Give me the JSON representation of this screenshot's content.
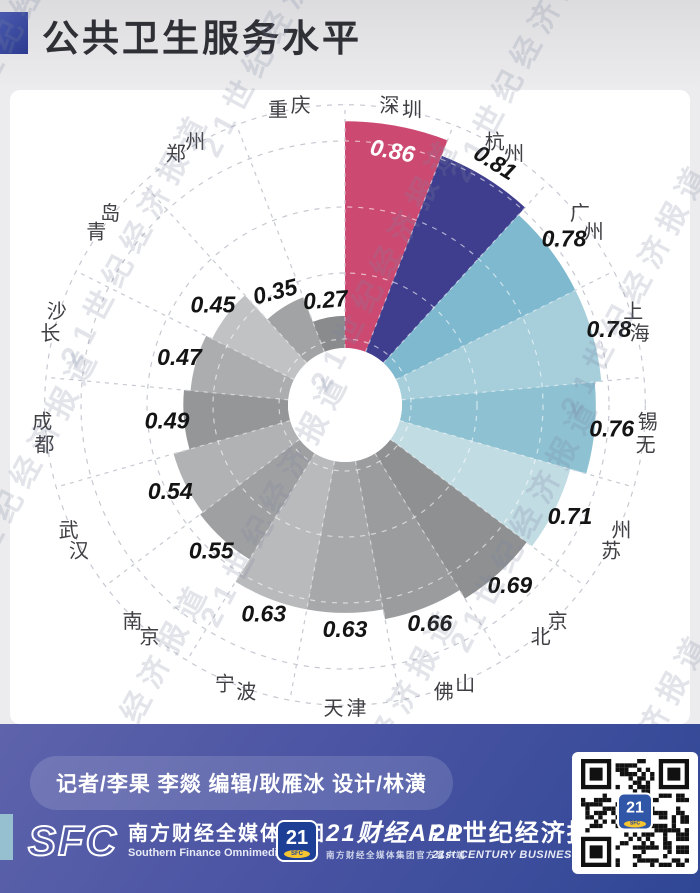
{
  "title": "公共卫生服务水平",
  "watermark": "21世纪经济报道",
  "colors": {
    "accent_blue": "#3c4a9e",
    "highlight_pink": "#cc4a71",
    "highlight_indigo": "#3f3d8e",
    "footer_top": "#5e63ab",
    "footer_bottom": "#2f4795"
  },
  "chart_data": {
    "type": "bar",
    "subtype": "polar-nightingale-rose",
    "title": "公共卫生服务水平",
    "categories": [
      "深圳",
      "杭州",
      "广州",
      "上海",
      "无锡",
      "苏州",
      "北京",
      "佛山",
      "天津",
      "宁波",
      "南京",
      "武汉",
      "成都",
      "长沙",
      "青岛",
      "郑州",
      "重庆"
    ],
    "values": [
      0.86,
      0.81,
      0.78,
      0.78,
      0.76,
      0.71,
      0.69,
      0.66,
      0.63,
      0.63,
      0.55,
      0.54,
      0.49,
      0.47,
      0.45,
      0.35,
      0.27
    ],
    "colors": [
      "#cc4a71",
      "#3f3d8e",
      "#7fb9cf",
      "#a6cedb",
      "#8ec1d2",
      "#c2dce4",
      "#8e9092",
      "#9b9c9e",
      "#a7a8aa",
      "#b9babc",
      "#9fa0a2",
      "#b1b2b4",
      "#959697",
      "#acadaf",
      "#c1c2c4",
      "#a2a3a5",
      "#8a8b8d"
    ],
    "value_label_inside_index": 0,
    "value_label_inside_color": "#ffffff",
    "value_label_color": "#141414",
    "city_label_color": "#3f3f44",
    "start_angle_deg": 0,
    "direction": "clockwise",
    "rlim": [
      0,
      1.0
    ],
    "grid": {
      "style": "dashed",
      "ring_values": [
        0.2,
        0.4,
        0.6,
        0.8
      ],
      "boundary_ring_value": 0.91,
      "spokes_at_sector_boundaries": true
    }
  },
  "footer": {
    "credits": "记者/李果 李燚  编辑/耿雁冰  设计/林潢",
    "sfc": {
      "logo": "SFC",
      "name_cn": "南方财经全媒体集团",
      "name_en": "Southern Finance Omnimedia Corp."
    },
    "app": {
      "icon_text": "21",
      "icon_sub": "SFC",
      "name": "21财经APP",
      "subtitle": "南方财经全媒体集团官方客户端"
    },
    "herald": {
      "name_cn": "21世纪经济报道",
      "name_en": "21st CENTURY BUSINESS HERALD"
    },
    "qr": {
      "center_text": "21",
      "center_sub": "SFC"
    }
  }
}
